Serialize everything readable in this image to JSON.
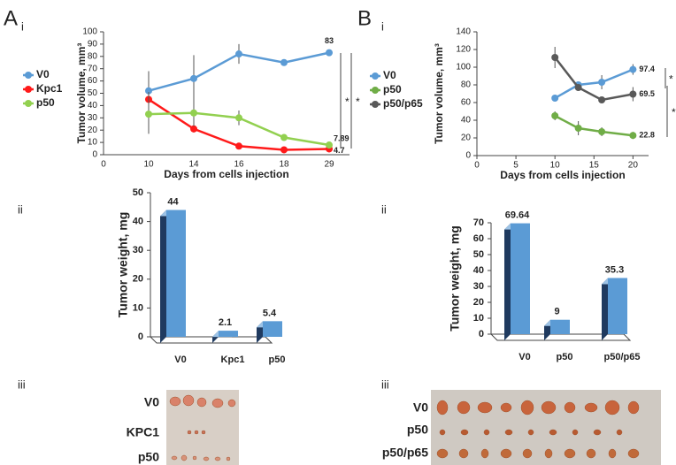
{
  "panel_labels": [
    "A",
    "i",
    "ii",
    "iii",
    "B",
    "i",
    "ii",
    "iii"
  ],
  "photos": [
    {
      "labels": [
        "V0",
        "KPC1",
        "p50"
      ]
    },
    {
      "labels": [
        "V0",
        "p50",
        "p50/p65"
      ]
    }
  ],
  "chart_data": [
    {
      "type": "line",
      "x_label": "Days from cells injection",
      "y_label": "Tumor volume, mm³",
      "categories": [
        "0",
        "10",
        "14",
        "16",
        "18",
        "29"
      ],
      "ylim": [
        0,
        100
      ],
      "yticks": [
        0,
        10,
        20,
        30,
        40,
        50,
        60,
        70,
        80,
        90,
        100
      ],
      "series": [
        {
          "name": "V0",
          "color": "#5b9bd5",
          "values": [
            null,
            52,
            62,
            82,
            75,
            83
          ],
          "errors": [
            null,
            16,
            19,
            8,
            1,
            1
          ]
        },
        {
          "name": "Kpc1",
          "color": "#ff1a1a",
          "values": [
            null,
            45,
            21,
            7,
            4,
            4.7
          ],
          "errors": [
            null,
            6,
            3,
            2,
            1,
            1
          ]
        },
        {
          "name": "p50",
          "color": "#92d050",
          "values": [
            null,
            33,
            34,
            30,
            14,
            7.89
          ],
          "errors": [
            null,
            16,
            11,
            6,
            2,
            1
          ]
        }
      ],
      "annotations": [
        "*",
        "*"
      ]
    },
    {
      "type": "line",
      "x_label": "Days from cells injection",
      "y_label": "Tumor volume, mm³",
      "x": [
        10,
        13,
        16,
        20
      ],
      "xlim": [
        0,
        22
      ],
      "xticks": [
        0,
        5,
        10,
        15,
        20
      ],
      "ylim": [
        0,
        140
      ],
      "yticks": [
        0,
        20,
        40,
        60,
        80,
        100,
        120,
        140
      ],
      "series": [
        {
          "name": "V0",
          "color": "#5b9bd5",
          "values": [
            65,
            80,
            83,
            97.4
          ],
          "errors": [
            2,
            3,
            8,
            6
          ]
        },
        {
          "name": "p50",
          "color": "#70ad47",
          "values": [
            45,
            31,
            27,
            22.8
          ],
          "errors": [
            5,
            8,
            5,
            4
          ]
        },
        {
          "name": "p50/p65",
          "color": "#595959",
          "values": [
            111,
            77,
            63,
            69.5
          ],
          "errors": [
            12,
            2,
            2,
            8
          ]
        }
      ],
      "annotations": [
        "*",
        "*"
      ]
    },
    {
      "type": "bar",
      "y_label": "Tumor weight, mg",
      "categories": [
        "V0",
        "Kpc1",
        "p50"
      ],
      "values": [
        44,
        2.1,
        5.4
      ],
      "color": "#5b9bd5",
      "ylim": [
        0,
        50
      ],
      "yticks": [
        0,
        10,
        20,
        30,
        40,
        50
      ]
    },
    {
      "type": "bar",
      "y_label": "Tumor weight, mg",
      "categories": [
        "V0",
        "p50",
        "p50/p65"
      ],
      "values": [
        69.64,
        9,
        35.3
      ],
      "color": "#5b9bd5",
      "ylim": [
        0,
        70
      ],
      "yticks": [
        0,
        10,
        20,
        30,
        40,
        50,
        60,
        70
      ]
    }
  ]
}
